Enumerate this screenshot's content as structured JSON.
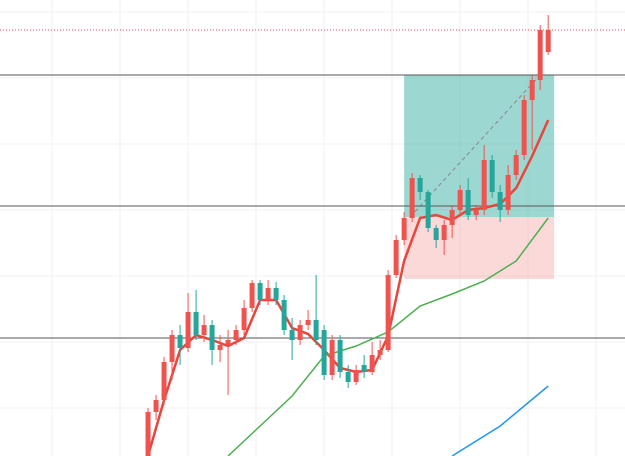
{
  "chart_data": {
    "type": "candlestick",
    "xlim": [
      -18.5,
      59.6
    ],
    "ylim": [
      0,
      456
    ],
    "up_color": "#ef5350",
    "down_color": "#26a69a",
    "candles": {
      "x": [
        0,
        1,
        2,
        3,
        4,
        5,
        6,
        7,
        8,
        9,
        10,
        11,
        12,
        13,
        14,
        15,
        16,
        17,
        18,
        19,
        20,
        21,
        22,
        23,
        24,
        25,
        26,
        27,
        28,
        29,
        30,
        31,
        32,
        33,
        34,
        35,
        36,
        37,
        38,
        39,
        40,
        41,
        42,
        43,
        44,
        45,
        46,
        47,
        48,
        49,
        50
      ],
      "open": [
        0,
        44,
        56,
        94,
        121,
        108,
        144,
        121,
        131,
        106,
        111,
        116,
        126,
        148,
        173,
        156,
        168,
        156,
        126,
        116,
        131,
        136,
        126,
        81,
        116,
        84,
        74,
        91,
        84,
        101,
        106,
        181,
        216,
        238,
        278,
        264,
        228,
        216,
        231,
        246,
        266,
        241,
        246,
        296,
        264,
        246,
        281,
        301,
        356,
        376,
        404
      ],
      "high": [
        48,
        61,
        99,
        126,
        131,
        163,
        166,
        141,
        136,
        121,
        126,
        131,
        156,
        176,
        176,
        176,
        174,
        161,
        138,
        136,
        146,
        181,
        131,
        121,
        121,
        91,
        91,
        101,
        114,
        116,
        186,
        221,
        244,
        283,
        281,
        266,
        231,
        236,
        251,
        271,
        278,
        251,
        311,
        301,
        271,
        291,
        306,
        361,
        381,
        431,
        441
      ],
      "low": [
        0,
        36,
        51,
        76,
        91,
        104,
        116,
        114,
        91,
        94,
        61,
        111,
        121,
        144,
        151,
        151,
        151,
        121,
        96,
        111,
        126,
        111,
        76,
        76,
        78,
        68,
        71,
        78,
        81,
        96,
        104,
        178,
        211,
        234,
        256,
        224,
        208,
        201,
        218,
        241,
        236,
        236,
        241,
        258,
        234,
        241,
        276,
        296,
        306,
        366,
        401
      ],
      "close": [
        44,
        56,
        94,
        121,
        108,
        144,
        121,
        131,
        106,
        111,
        116,
        126,
        148,
        173,
        156,
        168,
        156,
        126,
        116,
        131,
        136,
        116,
        81,
        116,
        84,
        74,
        86,
        84,
        101,
        106,
        181,
        216,
        238,
        278,
        264,
        228,
        216,
        231,
        246,
        266,
        241,
        246,
        296,
        264,
        246,
        281,
        301,
        356,
        376,
        426,
        426
      ]
    },
    "lines": [
      {
        "color": "#e8453c",
        "x": [
          0,
          2,
          4,
          6,
          8,
          10,
          12,
          14,
          16,
          18,
          20,
          22,
          24,
          26,
          28,
          30,
          32,
          34,
          36,
          38,
          40,
          42,
          44,
          46,
          48,
          50
        ],
        "values": [
          0,
          56,
          106,
          121,
          116,
          110,
          118,
          156,
          156,
          128,
          122,
          106,
          88,
          84,
          86,
          120,
          195,
          238,
          241,
          236,
          246,
          248,
          252,
          268,
          300,
          336
        ]
      },
      {
        "color": "#4caf50",
        "x": [
          10,
          14,
          18,
          22,
          26,
          30,
          34,
          38,
          42,
          46,
          50
        ],
        "values": [
          0,
          30,
          60,
          100,
          110,
          124,
          150,
          162,
          175,
          195,
          238
        ]
      },
      {
        "color": "#2196f3",
        "x": [
          38,
          44,
          50
        ],
        "values": [
          0,
          30,
          70
        ]
      }
    ],
    "levels": [
      381,
      250,
      118
    ],
    "alert_level": 426,
    "position": {
      "x": [
        32,
        50.75
      ],
      "entry": 239,
      "target": 381,
      "stop": 177
    }
  }
}
